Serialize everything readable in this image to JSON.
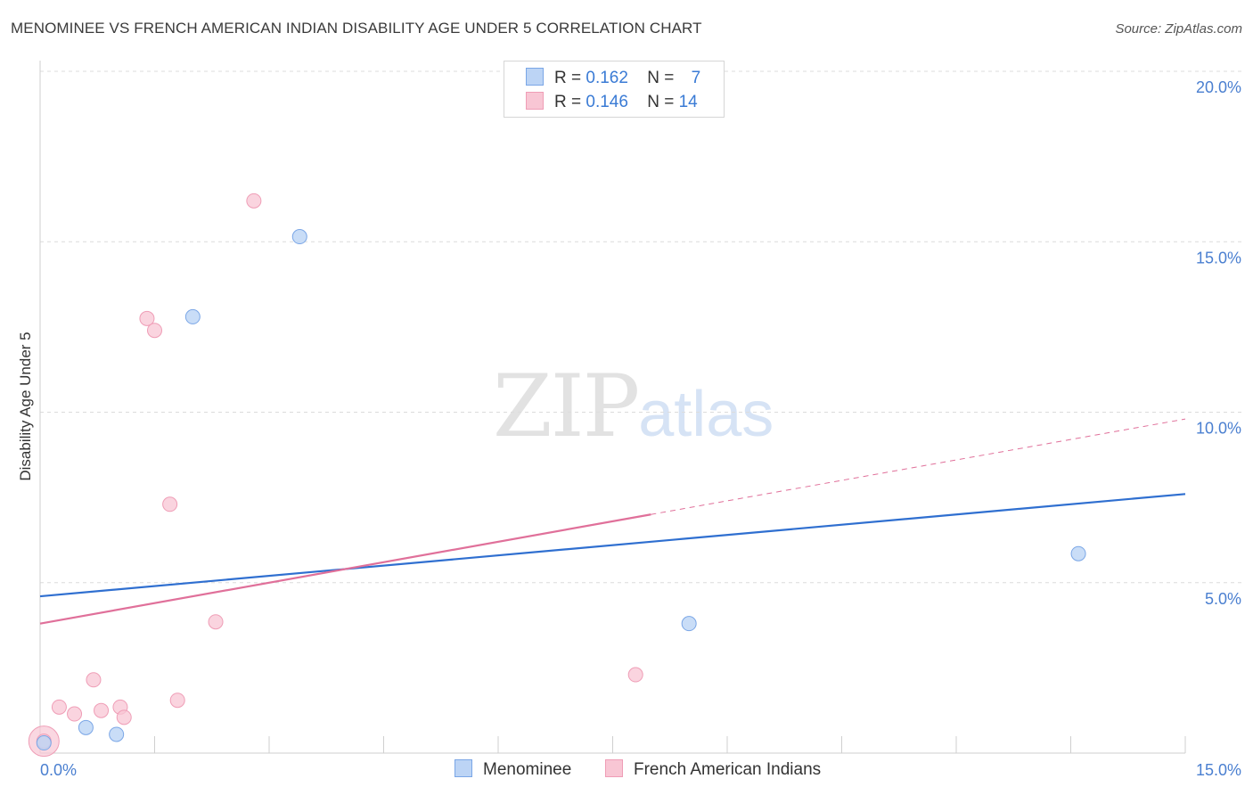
{
  "header": {
    "title": "MENOMINEE VS FRENCH AMERICAN INDIAN DISABILITY AGE UNDER 5 CORRELATION CHART",
    "source": "Source: ZipAtlas.com"
  },
  "watermark": {
    "zip": "ZIP",
    "atlas": "atlas"
  },
  "legend": {
    "rows": [
      {
        "r_label": "R =",
        "r_value": "0.162",
        "n_label": "N =",
        "n_value": "7"
      },
      {
        "r_label": "R =",
        "r_value": "0.146",
        "n_label": "N =",
        "n_value": "14"
      }
    ]
  },
  "colors": {
    "menominee_fill": "#bcd4f5",
    "menominee_stroke": "#7aa6e6",
    "menominee_line": "#2f6fd0",
    "french_fill": "#f8c6d4",
    "french_stroke": "#ef9db6",
    "french_line": "#e0709a",
    "grid": "#dcdcdc",
    "axis_text": "#4a7fd0"
  },
  "chart_data": {
    "type": "scatter",
    "title": "MENOMINEE VS FRENCH AMERICAN INDIAN DISABILITY AGE UNDER 5 CORRELATION CHART",
    "xlabel": "",
    "ylabel": "Disability Age Under 5",
    "xlim": [
      0,
      15
    ],
    "ylim": [
      0,
      20
    ],
    "x_tick_labels": [
      "0.0%",
      "15.0%"
    ],
    "y_ticks": [
      5,
      10,
      15,
      20
    ],
    "y_tick_labels": [
      "5.0%",
      "10.0%",
      "15.0%",
      "20.0%"
    ],
    "grid": true,
    "series": [
      {
        "name": "Menominee",
        "points": [
          {
            "x": 0.05,
            "y": 0.3
          },
          {
            "x": 0.6,
            "y": 0.75
          },
          {
            "x": 1.0,
            "y": 0.55
          },
          {
            "x": 2.0,
            "y": 12.8
          },
          {
            "x": 3.4,
            "y": 15.15
          },
          {
            "x": 8.5,
            "y": 3.8
          },
          {
            "x": 13.6,
            "y": 5.85
          }
        ],
        "trend": {
          "x0": 0,
          "y0": 4.6,
          "x1": 15,
          "y1": 7.6
        }
      },
      {
        "name": "French American Indians",
        "points": [
          {
            "x": 0.05,
            "y": 0.35
          },
          {
            "x": 0.25,
            "y": 1.35
          },
          {
            "x": 0.45,
            "y": 1.15
          },
          {
            "x": 0.7,
            "y": 2.15
          },
          {
            "x": 0.8,
            "y": 1.25
          },
          {
            "x": 1.05,
            "y": 1.35
          },
          {
            "x": 1.1,
            "y": 1.05
          },
          {
            "x": 1.4,
            "y": 12.75
          },
          {
            "x": 1.5,
            "y": 12.4
          },
          {
            "x": 1.7,
            "y": 7.3
          },
          {
            "x": 1.8,
            "y": 1.55
          },
          {
            "x": 2.3,
            "y": 3.85
          },
          {
            "x": 2.8,
            "y": 16.2
          },
          {
            "x": 7.8,
            "y": 2.3
          }
        ],
        "trend": {
          "x0": 0,
          "y0": 3.8,
          "x1": 8,
          "y1": 7.0
        },
        "trend_dashed": {
          "x0": 8,
          "y0": 7.0,
          "x1": 15,
          "y1": 9.8
        }
      }
    ]
  },
  "bottom_legend": {
    "items": [
      "Menominee",
      "French American Indians"
    ]
  }
}
